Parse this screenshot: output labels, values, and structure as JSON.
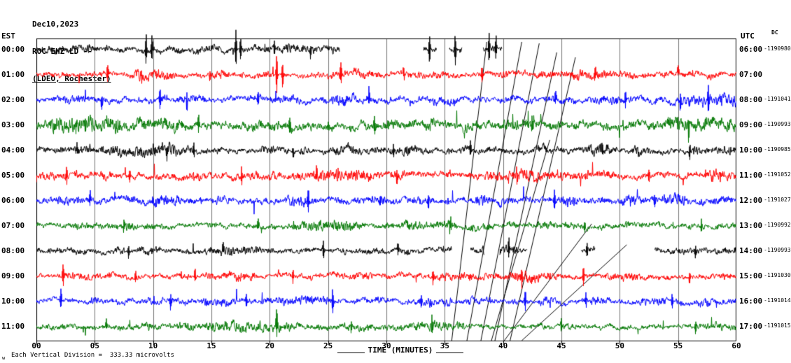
{
  "header": {
    "date": "Dec10,2023",
    "station": "ROC EHZ LD --",
    "network": "(LDEO, Rochester)"
  },
  "axes": {
    "left_label": "EST",
    "right_label": "UTC",
    "right_sublabel": "DC",
    "x_ticks": [
      "00",
      "05",
      "10",
      "15",
      "20",
      "25",
      "30",
      "35",
      "40",
      "45",
      "50",
      "55",
      "60"
    ],
    "x_axis_label": "TIME (MINUTES)"
  },
  "footer": {
    "scale_note": "Each Vertical Division =  333.33 microvolts",
    "corner_mark": "w"
  },
  "chart_data": {
    "type": "line",
    "subtype": "helicorder-seismogram",
    "x_range_minutes": [
      0,
      60
    ],
    "x_tick_interval_minutes": 5,
    "grid_interval_minutes": 5,
    "minutes_per_line": 60,
    "vertical_division_microvolts": 333.33,
    "trace_colors_cycle": [
      "#000000",
      "#ff0000",
      "#0000ff",
      "#007700"
    ],
    "rows": [
      {
        "est": "00:00",
        "utc": "06:00",
        "dc": "-1190980",
        "color": "#000000",
        "amplitude": 6,
        "segments": [
          [
            0,
            26
          ],
          [
            33.2,
            34.3
          ],
          [
            35.4,
            36.5
          ],
          [
            38.3,
            39.9
          ]
        ],
        "spikes": [
          [
            9.4,
            26
          ],
          [
            9.9,
            20
          ],
          [
            17.1,
            30
          ],
          [
            17.5,
            18
          ],
          [
            20.4,
            12
          ],
          [
            23.5,
            10
          ],
          [
            33.7,
            22
          ],
          [
            35.9,
            26
          ],
          [
            38.8,
            24
          ],
          [
            39.4,
            20
          ]
        ]
      },
      {
        "est": "01:00",
        "utc": "07:00",
        "dc": "",
        "color": "#ff0000",
        "amplitude": 5.5,
        "segments": [
          [
            0,
            60
          ]
        ],
        "spikes": [
          [
            6.1,
            16
          ],
          [
            9.0,
            10
          ],
          [
            14.9,
            11
          ],
          [
            20.6,
            32
          ],
          [
            21.1,
            22
          ],
          [
            26.1,
            18
          ],
          [
            31.5,
            10
          ],
          [
            38.2,
            12
          ],
          [
            47.9,
            11
          ],
          [
            55.0,
            10
          ]
        ]
      },
      {
        "est": "02:00",
        "utc": "08:00",
        "dc": "-1191041",
        "color": "#0000ff",
        "amplitude": 7,
        "segments": [
          [
            0,
            60
          ]
        ],
        "spikes": [
          [
            5.6,
            12
          ],
          [
            10.6,
            18
          ],
          [
            12.9,
            14
          ],
          [
            19.0,
            12
          ],
          [
            28.5,
            10
          ],
          [
            44.5,
            12
          ],
          [
            50.5,
            14
          ],
          [
            55.2,
            16
          ],
          [
            57.6,
            22
          ]
        ]
      },
      {
        "est": "03:00",
        "utc": "09:00",
        "dc": "-1190993",
        "color": "#007700",
        "amplitude": 9,
        "segments": [
          [
            0,
            60
          ]
        ],
        "spikes": [
          [
            4.2,
            12
          ],
          [
            13.9,
            16
          ],
          [
            21.7,
            18
          ],
          [
            29.0,
            12
          ],
          [
            42.5,
            12
          ],
          [
            55.9,
            20
          ]
        ]
      },
      {
        "est": "04:00",
        "utc": "10:00",
        "dc": "-1190985",
        "color": "#000000",
        "amplitude": 6.5,
        "segments": [
          [
            0,
            60
          ]
        ],
        "spikes": [
          [
            3.5,
            10
          ],
          [
            11.2,
            14
          ],
          [
            13.5,
            12
          ],
          [
            22.0,
            10
          ],
          [
            30.6,
            11
          ],
          [
            37.2,
            12
          ],
          [
            48.5,
            10
          ],
          [
            56.0,
            12
          ]
        ]
      },
      {
        "est": "05:00",
        "utc": "11:00",
        "dc": "-1191052",
        "color": "#ff0000",
        "amplitude": 7,
        "segments": [
          [
            0,
            60
          ]
        ],
        "spikes": [
          [
            2.6,
            14
          ],
          [
            8.0,
            10
          ],
          [
            17.6,
            16
          ],
          [
            24.0,
            12
          ],
          [
            30.9,
            13
          ],
          [
            41.2,
            12
          ],
          [
            52.5,
            11
          ]
        ]
      },
      {
        "est": "06:00",
        "utc": "12:00",
        "dc": "-1191027",
        "color": "#0000ff",
        "amplitude": 7,
        "segments": [
          [
            0,
            60
          ]
        ],
        "spikes": [
          [
            4.6,
            13
          ],
          [
            10.0,
            10
          ],
          [
            23.3,
            22
          ],
          [
            29.5,
            11
          ],
          [
            33.6,
            12
          ],
          [
            44.4,
            16
          ],
          [
            53.0,
            12
          ]
        ]
      },
      {
        "est": "07:00",
        "utc": "13:00",
        "dc": "-1190992",
        "color": "#007700",
        "amplitude": 6,
        "segments": [
          [
            0,
            60
          ]
        ],
        "spikes": [
          [
            7.5,
            10
          ],
          [
            19.0,
            11
          ],
          [
            35.5,
            10
          ],
          [
            47.0,
            12
          ],
          [
            57.0,
            11
          ]
        ]
      },
      {
        "est": "08:00",
        "utc": "14:00",
        "dc": "-1190993",
        "color": "#000000",
        "amplitude": 6,
        "segments": [
          [
            0,
            35.6
          ],
          [
            37.2,
            38.4
          ],
          [
            39.7,
            42.1
          ],
          [
            46.7,
            47.9
          ],
          [
            53.0,
            60
          ]
        ],
        "spikes": [
          [
            7.9,
            11
          ],
          [
            16.0,
            10
          ],
          [
            24.6,
            14
          ],
          [
            31.0,
            11
          ],
          [
            40.5,
            16
          ],
          [
            47.2,
            12
          ],
          [
            56.5,
            12
          ]
        ]
      },
      {
        "est": "09:00",
        "utc": "15:00",
        "dc": "-1191030",
        "color": "#ff0000",
        "amplitude": 5.5,
        "segments": [
          [
            0,
            60
          ]
        ],
        "spikes": [
          [
            2.3,
            18
          ],
          [
            8.5,
            10
          ],
          [
            13.6,
            12
          ],
          [
            22.0,
            11
          ],
          [
            34.0,
            12
          ],
          [
            41.6,
            14
          ],
          [
            46.9,
            16
          ],
          [
            56.0,
            11
          ]
        ]
      },
      {
        "est": "10:00",
        "utc": "16:00",
        "dc": "-1191014",
        "color": "#0000ff",
        "amplitude": 6,
        "segments": [
          [
            0,
            60
          ]
        ],
        "spikes": [
          [
            2.1,
            16
          ],
          [
            11.5,
            11
          ],
          [
            18.0,
            10
          ],
          [
            25.4,
            22
          ],
          [
            33.0,
            11
          ],
          [
            41.9,
            18
          ],
          [
            47.1,
            13
          ],
          [
            54.5,
            12
          ]
        ]
      },
      {
        "est": "11:00",
        "utc": "17:00",
        "dc": "-1191015",
        "color": "#007700",
        "amplitude": 5.5,
        "segments": [
          [
            0,
            60
          ]
        ],
        "spikes": [
          [
            6.0,
            10
          ],
          [
            20.6,
            26
          ],
          [
            27.0,
            11
          ],
          [
            33.9,
            13
          ],
          [
            45.0,
            10
          ],
          [
            56.5,
            11
          ]
        ]
      }
    ],
    "artifact_lines": [
      [
        41.6,
        40,
        36.9,
        467
      ],
      [
        43.1,
        42,
        38.1,
        467
      ],
      [
        44.6,
        55,
        39.3,
        467
      ],
      [
        46.2,
        62,
        40.6,
        467
      ],
      [
        38.6,
        40,
        35.6,
        467
      ],
      [
        50.6,
        330,
        41.6,
        467
      ],
      [
        47.6,
        300,
        40.1,
        467
      ],
      [
        44.0,
        180,
        39.0,
        467
      ]
    ]
  }
}
